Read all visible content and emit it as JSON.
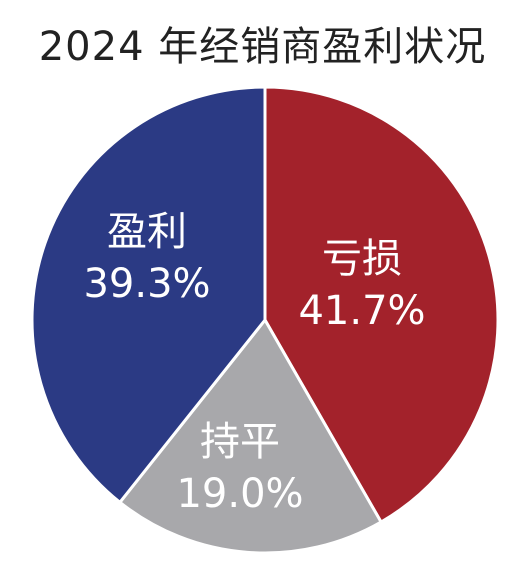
{
  "chart_data": {
    "type": "pie",
    "title": "2024 年经销商盈利状况",
    "slices": [
      {
        "name": "亏损",
        "value": 41.7,
        "label": "41.7%",
        "color": "#a3222b"
      },
      {
        "name": "持平",
        "value": 19.0,
        "label": "19.0%",
        "color": "#a8a8ab"
      },
      {
        "name": "盈利",
        "value": 39.3,
        "label": "39.3%",
        "color": "#2b3a84"
      }
    ],
    "start_angle_deg": 0,
    "direction": "clockwise"
  }
}
